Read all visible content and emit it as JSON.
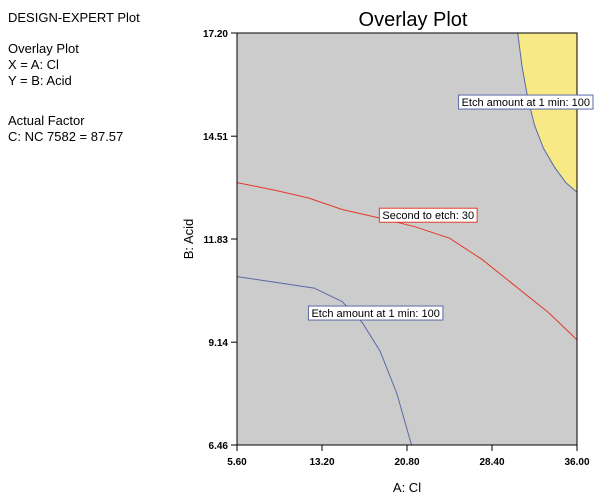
{
  "sidebar": {
    "title": "DESIGN-EXPERT Plot",
    "plot_type": "Overlay Plot",
    "x_def": "X = A: Cl",
    "y_def": "Y = B: Acid",
    "actual_factor_heading": "Actual Factor",
    "actual_factor_value": "C: NC 7582 = 87.57"
  },
  "chart_data": {
    "type": "overlay contour",
    "title": "Overlay Plot",
    "xlabel": "A: Cl",
    "ylabel": "B: Acid",
    "xlim": [
      5.6,
      36.0
    ],
    "ylim": [
      6.46,
      17.2
    ],
    "xticks": [
      "5.60",
      "13.20",
      "20.80",
      "28.40",
      "36.00"
    ],
    "xtick_values": [
      5.6,
      13.2,
      20.8,
      28.4,
      36.0
    ],
    "yticks": [
      "6.46",
      "9.14",
      "11.83",
      "14.51",
      "17.20"
    ],
    "ytick_values": [
      6.46,
      9.14,
      11.83,
      14.51,
      17.2
    ],
    "colors": {
      "region": "#cccccc",
      "sweet_spot": "#f7ea86",
      "etch_contour": "#5a6aa8",
      "second_contour": "#e23a2a"
    },
    "contours": [
      {
        "label": "Etch amount at 1 min: 100",
        "color": "#5a6aa8",
        "points": [
          [
            30.7,
            17.2
          ],
          [
            31.1,
            16.3
          ],
          [
            31.6,
            15.5
          ],
          [
            32.2,
            14.8
          ],
          [
            33.0,
            14.2
          ],
          [
            34.0,
            13.7
          ],
          [
            35.0,
            13.3
          ],
          [
            36.0,
            13.05
          ]
        ],
        "label_at": [
          36.0,
          15.4
        ]
      },
      {
        "label": "Etch amount at 1 min: 100",
        "color": "#5a6aa8",
        "points": [
          [
            5.6,
            10.85
          ],
          [
            9.0,
            10.7
          ],
          [
            12.5,
            10.55
          ],
          [
            15.0,
            10.2
          ],
          [
            16.8,
            9.65
          ],
          [
            18.4,
            8.9
          ],
          [
            19.9,
            7.8
          ],
          [
            21.2,
            6.46
          ]
        ],
        "label_at": [
          18.0,
          9.9
        ]
      },
      {
        "label": "Second to etch: 30",
        "color": "#e23a2a",
        "points": [
          [
            5.6,
            13.3
          ],
          [
            9.0,
            13.1
          ],
          [
            12.0,
            12.9
          ],
          [
            15.0,
            12.6
          ],
          [
            18.0,
            12.4
          ],
          [
            21.5,
            12.15
          ],
          [
            24.6,
            11.85
          ],
          [
            27.5,
            11.3
          ],
          [
            30.5,
            10.6
          ],
          [
            33.5,
            9.9
          ],
          [
            36.0,
            9.2
          ]
        ],
        "label_at": [
          22.7,
          12.45
        ]
      }
    ],
    "sweet_spot_region": [
      [
        30.7,
        17.2
      ],
      [
        31.1,
        16.3
      ],
      [
        31.6,
        15.5
      ],
      [
        32.2,
        14.8
      ],
      [
        33.0,
        14.2
      ],
      [
        34.0,
        13.7
      ],
      [
        35.0,
        13.3
      ],
      [
        36.0,
        13.05
      ],
      [
        36.0,
        17.2
      ]
    ]
  }
}
